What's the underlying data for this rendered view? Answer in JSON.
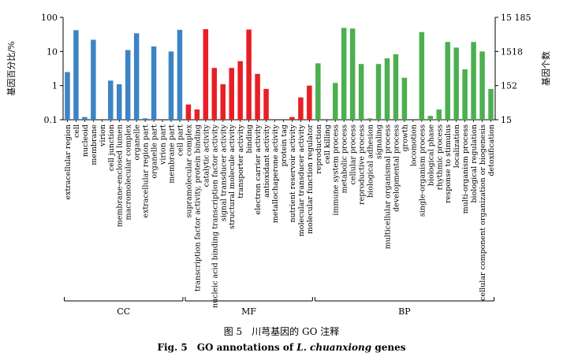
{
  "chart_data": {
    "type": "bar",
    "categories": [
      "extracellular region",
      "cell",
      "nucleoid",
      "membrane",
      "virion",
      "cell junction",
      "membrane-enclosed lumen",
      "macromolecular complex",
      "organelle",
      "extracellular region part",
      "organelle part",
      "virion part",
      "membrane part",
      "cell part",
      "supramolecular complex",
      "transcription factor activity, protein binding",
      "catalytic activity",
      "nucleic acid binding transcription factor activity",
      "signal transducer activity",
      "structural molecule activity",
      "transporter activity",
      "binding",
      "electron carrier activity",
      "antioxidant activity",
      "metallochaperone activity",
      "protein tag",
      "nutrient reservoir activity",
      "molecular transducer activity",
      "molecular function regulator",
      "reproduction",
      "cell killing",
      "immune system process",
      "metabolic process",
      "cellular process",
      "reproductive process",
      "biological adhesion",
      "signaling",
      "multicellular organismal process",
      "developmental process",
      "growth",
      "locomotion",
      "single-organism process",
      "biological phase",
      "rhythmic process",
      "response to stimulus",
      "localization",
      "multi-organism process",
      "biological regulation",
      "cellular component organization or biogenesis",
      "detoxification"
    ],
    "values": [
      2.5,
      42,
      0.12,
      22,
      0.1,
      1.4,
      1.1,
      11,
      34,
      0.11,
      14,
      0.1,
      10,
      43,
      0.28,
      0.2,
      45,
      3.3,
      1.1,
      3.3,
      5.2,
      44,
      2.2,
      0.8,
      0.1,
      0.1,
      0.12,
      0.45,
      1.0,
      4.5,
      0.1,
      1.2,
      49,
      47,
      4.3,
      0.11,
      4.3,
      6.3,
      8.3,
      1.7,
      0.1,
      37,
      0.13,
      0.2,
      19,
      13,
      3.0,
      19,
      10,
      0.8
    ],
    "groups": [
      {
        "name": "CC",
        "color": "#3d84c6",
        "start": 0,
        "end": 13
      },
      {
        "name": "MF",
        "color": "#e81f25",
        "start": 14,
        "end": 28
      },
      {
        "name": "BP",
        "color": "#4caf50",
        "start": 29,
        "end": 49
      }
    ],
    "ylabel": "基因百分比/%",
    "ylabel_right": "基因个数",
    "yscale": "log",
    "ylim": [
      0.1,
      100
    ],
    "yticks": [
      "0.1",
      "1",
      "10",
      "100"
    ],
    "yticks_right": [
      "15",
      "152",
      "1518",
      "15 185"
    ],
    "grid": false
  },
  "caption": {
    "zh": "图 5　川芎基因的 GO 注释",
    "en_prefix": "Fig. 5　GO annotations of ",
    "en_species": "L. chuanxiong",
    "en_suffix": " genes"
  }
}
